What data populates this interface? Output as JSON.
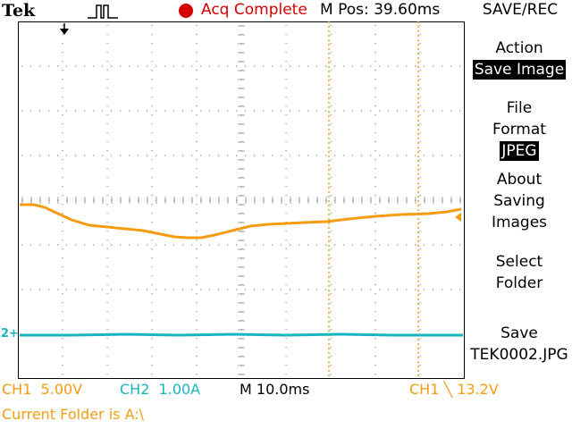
{
  "header": {
    "brand": "Tek",
    "acq_status": "Acq Complete",
    "m_pos": "M Pos: 39.60ms",
    "menu_title": "SAVE/REC"
  },
  "side_menu": {
    "action_label": "Action",
    "action_value": "Save Image",
    "file_format_line1": "File",
    "file_format_line2": "Format",
    "file_format_value": "JPEG",
    "about_line1": "About",
    "about_line2": "Saving",
    "about_line3": "Images",
    "select_line1": "Select",
    "select_line2": "Folder",
    "save_line1": "Save",
    "save_line2": "TEK0002.JPG"
  },
  "status": {
    "ch1": "CH1  5.00V",
    "ch2": "CH2  1.00A",
    "timebase": "M 10.0ms",
    "trigger": "CH1 ╲ 13.2V",
    "folder": "Current Folder is A:\\"
  },
  "markers": {
    "ch2_marker": "2+"
  },
  "colors": {
    "ch1": "#f39c12",
    "ch2": "#18b4c0",
    "acq": "#d40000"
  }
}
